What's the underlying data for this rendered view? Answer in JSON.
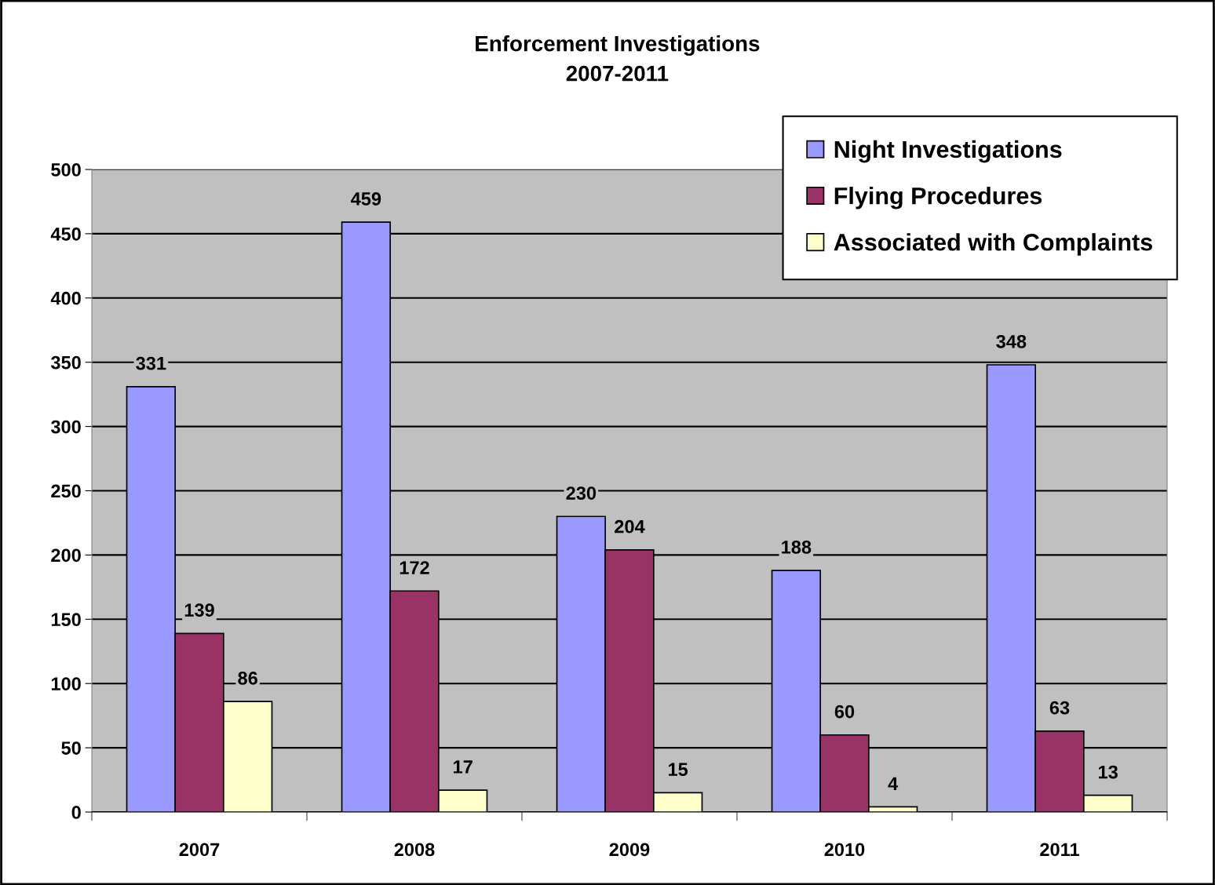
{
  "chart_data": {
    "type": "bar",
    "title": "Enforcement Investigations\n2007-2011",
    "categories": [
      "2007",
      "2008",
      "2009",
      "2010",
      "2011"
    ],
    "series": [
      {
        "name": "Night Investigations",
        "color": "#9999ff",
        "values": [
          331,
          459,
          230,
          188,
          348
        ]
      },
      {
        "name": "Flying Procedures",
        "color": "#993366",
        "values": [
          139,
          172,
          204,
          60,
          63
        ]
      },
      {
        "name": "Associated with Complaints",
        "color": "#ffffcc",
        "values": [
          86,
          17,
          15,
          4,
          13
        ]
      }
    ],
    "ylim": [
      0,
      500
    ],
    "yticks": [
      0,
      50,
      100,
      150,
      200,
      250,
      300,
      350,
      400,
      450,
      500
    ],
    "grid": "y",
    "legend": "top right",
    "data_labels": true
  }
}
